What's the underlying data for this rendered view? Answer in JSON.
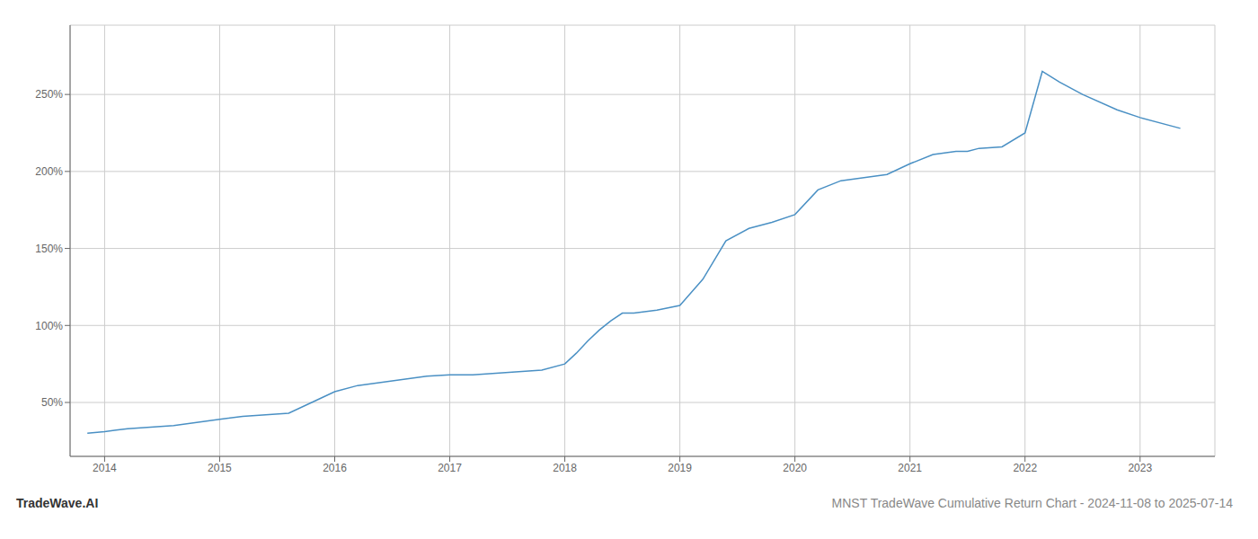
{
  "chart_data": {
    "type": "line",
    "title": "MNST TradeWave Cumulative Return Chart - 2024-11-08 to 2025-07-14",
    "annotations": [
      {
        "text": "TradeWave.AI"
      }
    ],
    "color": "#4A90C4",
    "grid": true,
    "x": [
      2013.85,
      2014.0,
      2014.1,
      2014.2,
      2014.4,
      2014.6,
      2014.8,
      2015.0,
      2015.2,
      2015.4,
      2015.6,
      2015.8,
      2016.0,
      2016.2,
      2016.4,
      2016.6,
      2016.8,
      2017.0,
      2017.2,
      2017.4,
      2017.6,
      2017.8,
      2018.0,
      2018.1,
      2018.2,
      2018.3,
      2018.4,
      2018.5,
      2018.6,
      2018.8,
      2019.0,
      2019.2,
      2019.4,
      2019.6,
      2019.8,
      2020.0,
      2020.2,
      2020.4,
      2020.5,
      2020.6,
      2020.8,
      2021.0,
      2021.2,
      2021.4,
      2021.5,
      2021.6,
      2021.8,
      2022.0,
      2022.15,
      2022.3,
      2022.5,
      2022.8,
      2023.0,
      2023.35
    ],
    "values": [
      30,
      31,
      32,
      33,
      34,
      35,
      37,
      39,
      41,
      42,
      43,
      50,
      57,
      61,
      63,
      65,
      67,
      68,
      68,
      69,
      70,
      71,
      75,
      82,
      90,
      97,
      103,
      108,
      108,
      110,
      113,
      130,
      155,
      163,
      167,
      172,
      188,
      194,
      195,
      196,
      198,
      205,
      211,
      213,
      213,
      215,
      216,
      225,
      265,
      258,
      250,
      240,
      235,
      228
    ],
    "xlim": [
      2013.7,
      2023.65
    ],
    "xticks": [
      2014,
      2015,
      2016,
      2017,
      2018,
      2019,
      2020,
      2021,
      2022,
      2023
    ],
    "ylim": [
      15,
      295
    ],
    "yticks": [
      {
        "value": 50,
        "label": "50%"
      },
      {
        "value": 100,
        "label": "100%"
      },
      {
        "value": 150,
        "label": "150%"
      },
      {
        "value": 200,
        "label": "200%"
      },
      {
        "value": 250,
        "label": "250%"
      }
    ]
  }
}
